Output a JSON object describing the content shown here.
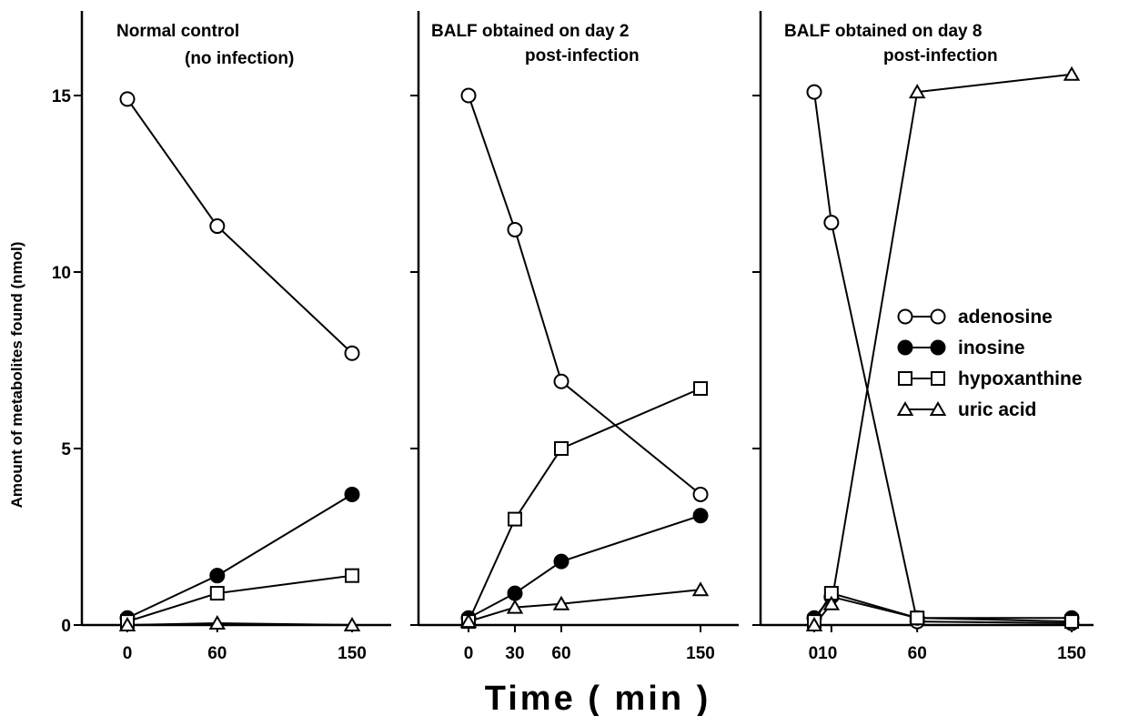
{
  "chart_data": {
    "type": "line",
    "ylabel": "Amount of metabolites found (nmol)",
    "xlabel": "Time ( min )",
    "ylim": [
      0,
      15
    ],
    "yticks": [
      0,
      5,
      10,
      15
    ],
    "legend": {
      "position": "right",
      "entries": [
        {
          "label": "adenosine",
          "marker": "circle-open"
        },
        {
          "label": "inosine",
          "marker": "circle-filled"
        },
        {
          "label": "hypoxanthine",
          "marker": "square-open"
        },
        {
          "label": "uric acid",
          "marker": "triangle-open"
        }
      ]
    },
    "panels": [
      {
        "title_lines": [
          "Normal control",
          "(no infection)"
        ],
        "xlim": [
          0,
          150
        ],
        "xticks": [
          0,
          60,
          150
        ],
        "series": [
          {
            "name": "adenosine",
            "x": [
              0,
              60,
              150
            ],
            "y": [
              14.9,
              11.3,
              7.7
            ]
          },
          {
            "name": "inosine",
            "x": [
              0,
              60,
              150
            ],
            "y": [
              0.2,
              1.4,
              3.7
            ]
          },
          {
            "name": "hypoxanthine",
            "x": [
              0,
              60,
              150
            ],
            "y": [
              0.1,
              0.9,
              1.4
            ]
          },
          {
            "name": "uric acid",
            "x": [
              0,
              60,
              150
            ],
            "y": [
              0.0,
              0.05,
              0.0
            ]
          }
        ]
      },
      {
        "title_lines": [
          "BALF obtained on day 2",
          "post-infection"
        ],
        "xlim": [
          0,
          150
        ],
        "xticks": [
          0,
          30,
          60,
          150
        ],
        "series": [
          {
            "name": "adenosine",
            "x": [
              0,
              30,
              60,
              150
            ],
            "y": [
              15.0,
              11.2,
              6.9,
              3.7
            ]
          },
          {
            "name": "inosine",
            "x": [
              0,
              30,
              60,
              150
            ],
            "y": [
              0.2,
              0.9,
              1.8,
              3.1
            ]
          },
          {
            "name": "hypoxanthine",
            "x": [
              0,
              30,
              60,
              150
            ],
            "y": [
              0.1,
              3.0,
              5.0,
              6.7
            ]
          },
          {
            "name": "uric acid",
            "x": [
              0,
              30,
              60,
              150
            ],
            "y": [
              0.1,
              0.5,
              0.6,
              1.0
            ]
          }
        ]
      },
      {
        "title_lines": [
          "BALF obtained on day 8",
          "post-infection"
        ],
        "xlim": [
          0,
          150
        ],
        "xticks": [
          0,
          10,
          60,
          150
        ],
        "xtick_label_text": "010",
        "series": [
          {
            "name": "adenosine",
            "x": [
              0,
              10,
              60,
              150
            ],
            "y": [
              15.1,
              11.4,
              0.1,
              0.05
            ]
          },
          {
            "name": "inosine",
            "x": [
              0,
              10,
              60,
              150
            ],
            "y": [
              0.2,
              0.8,
              0.2,
              0.2
            ]
          },
          {
            "name": "hypoxanthine",
            "x": [
              0,
              10,
              60,
              150
            ],
            "y": [
              0.1,
              0.9,
              0.2,
              0.1
            ]
          },
          {
            "name": "uric acid",
            "x": [
              0,
              10,
              60,
              150
            ],
            "y": [
              0.0,
              0.6,
              15.1,
              15.6
            ]
          }
        ]
      }
    ]
  }
}
